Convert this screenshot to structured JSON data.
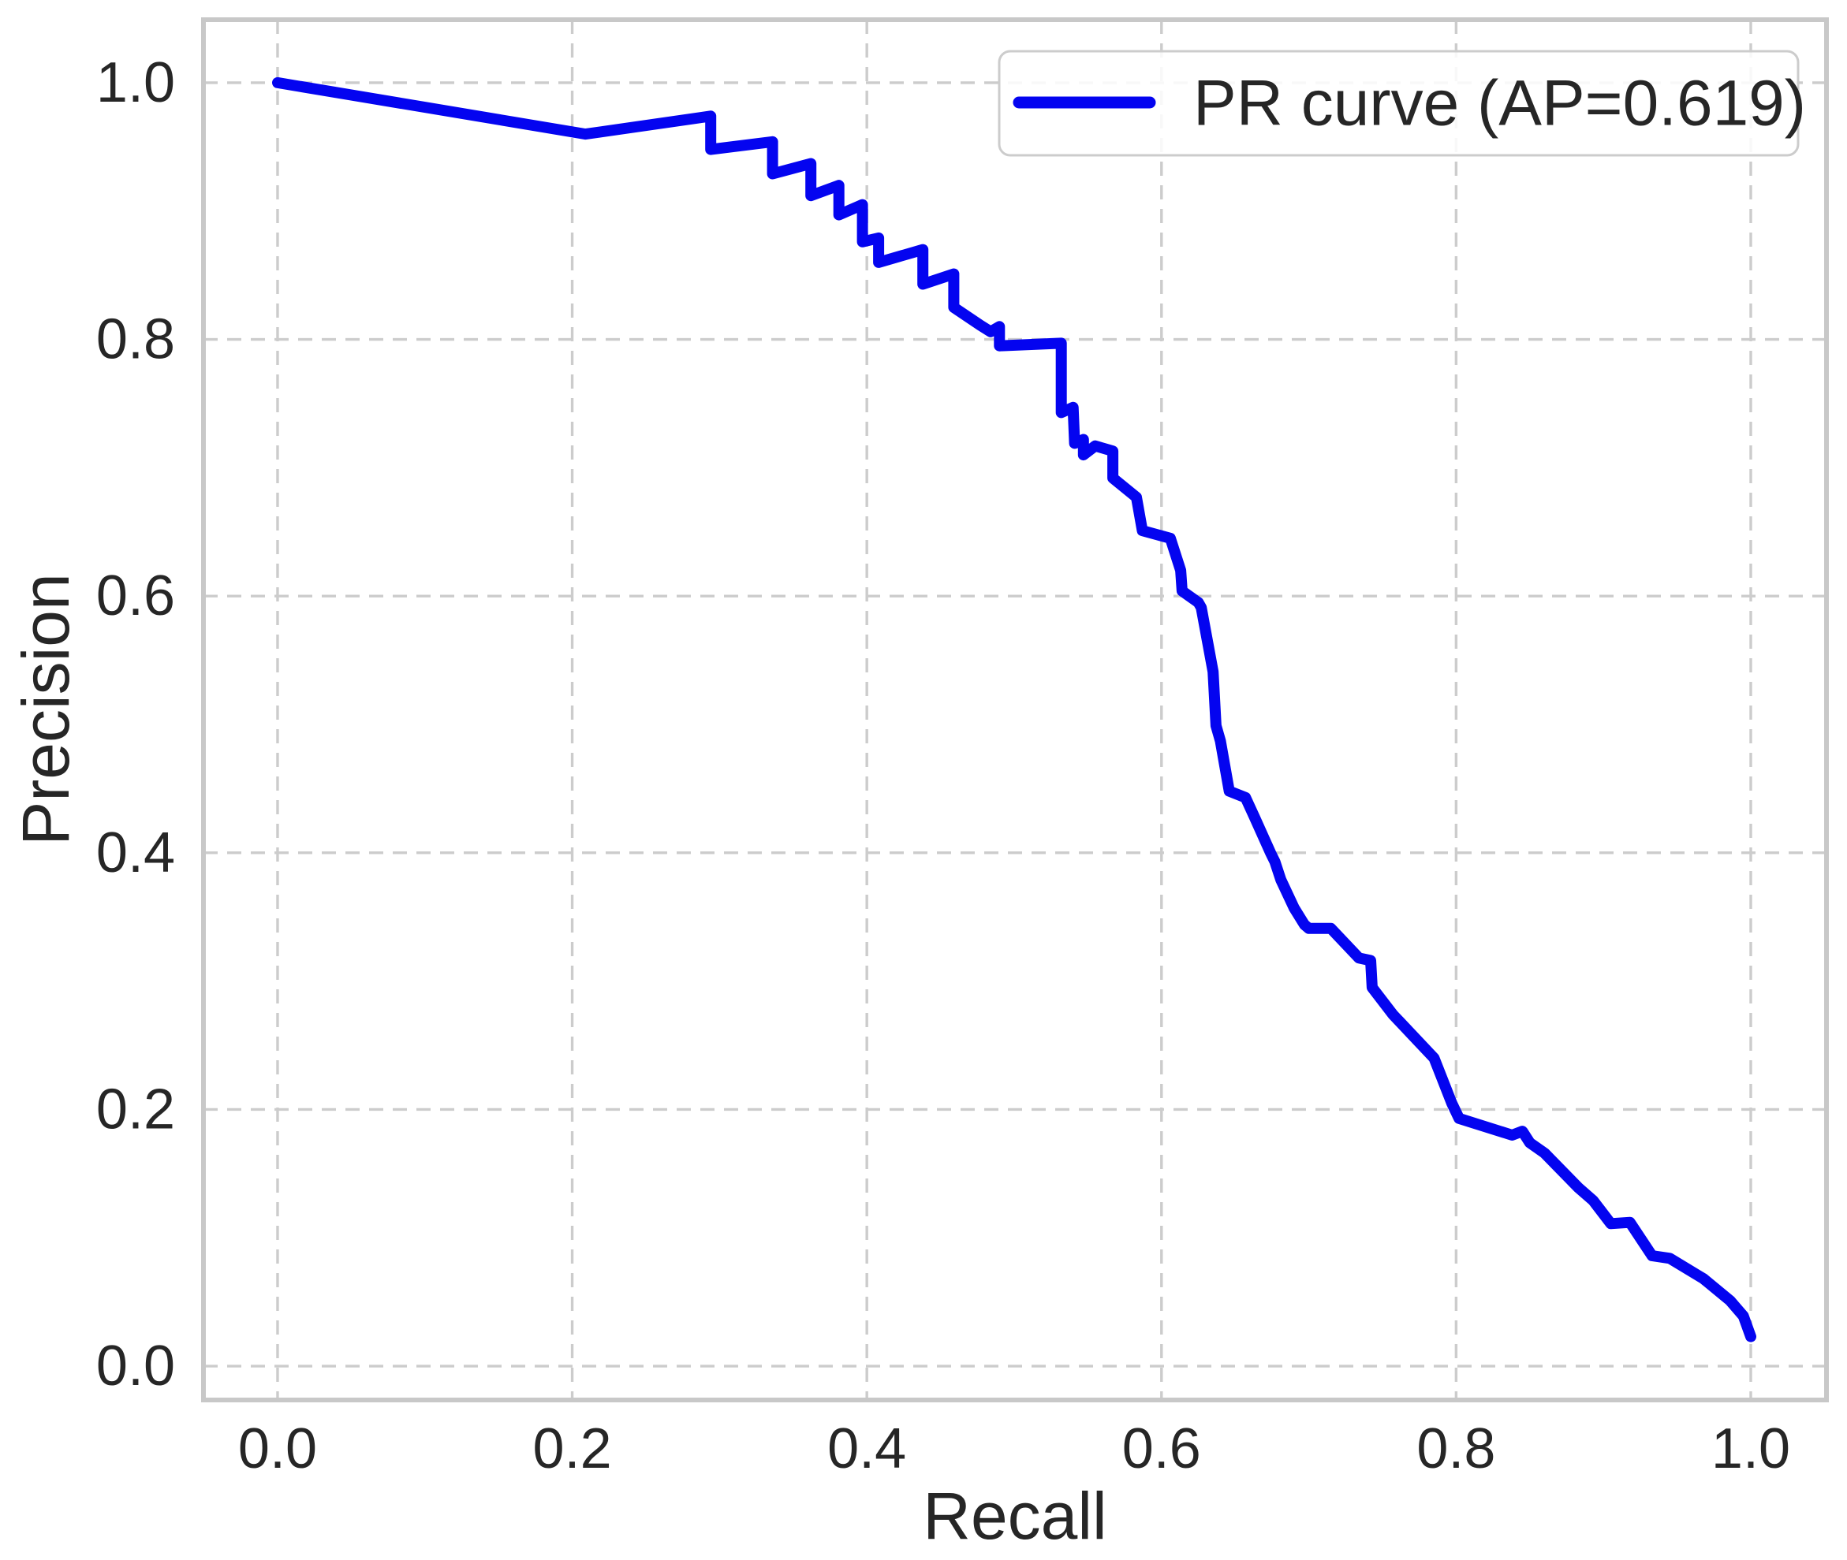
{
  "figure": {
    "background": "#ffffff"
  },
  "style": {
    "line_color": "#0404f0",
    "line_width": 14,
    "grid_color": "#cccccc",
    "grid_dash": "18 12",
    "grid_width": 3.4,
    "spine_color": "#c8c8c8",
    "spine_width": 6,
    "text_color": "#262626",
    "legend_bg": "#ffffff",
    "legend_border": "#cccccc"
  },
  "chart_data": {
    "type": "line",
    "title": "",
    "xlabel": "Recall",
    "ylabel": "Precision",
    "grid": true,
    "legend": {
      "position": "upper right",
      "label": "PR curve (AP=0.619)"
    },
    "ap_value": "0.619",
    "xlim": [
      -0.0503,
      1.0514
    ],
    "ylim": [
      -0.0264,
      1.0491
    ],
    "x_ticks": [
      0.0,
      0.2,
      0.4,
      0.6,
      0.8,
      1.0
    ],
    "x_tick_labels": [
      "0.0",
      "0.2",
      "0.4",
      "0.6",
      "0.8",
      "1.0"
    ],
    "y_ticks": [
      0.0,
      0.2,
      0.4,
      0.6,
      0.8,
      1.0
    ],
    "y_tick_labels": [
      "0.0",
      "0.2",
      "0.4",
      "0.6",
      "0.8",
      "1.0"
    ],
    "series": [
      {
        "name": "PR curve (AP=0.619)",
        "x": [
          0.0,
          0.209,
          0.294,
          0.294,
          0.336,
          0.336,
          0.362,
          0.362,
          0.381,
          0.381,
          0.397,
          0.397,
          0.408,
          0.408,
          0.438,
          0.438,
          0.459,
          0.459,
          0.477,
          0.484,
          0.49,
          0.49,
          0.532,
          0.532,
          0.54,
          0.541,
          0.547,
          0.547,
          0.555,
          0.567,
          0.567,
          0.583,
          0.587,
          0.606,
          0.613,
          0.614,
          0.625,
          0.627,
          0.635,
          0.637,
          0.64,
          0.646,
          0.657,
          0.663,
          0.674,
          0.677,
          0.681,
          0.69,
          0.697,
          0.7,
          0.715,
          0.734,
          0.742,
          0.743,
          0.757,
          0.785,
          0.797,
          0.802,
          0.838,
          0.845,
          0.85,
          0.86,
          0.883,
          0.893,
          0.905,
          0.918,
          0.933,
          0.945,
          0.968,
          0.986,
          0.995,
          1.0
        ],
        "y": [
          1.0,
          0.96,
          0.974,
          0.948,
          0.954,
          0.929,
          0.937,
          0.912,
          0.92,
          0.897,
          0.905,
          0.876,
          0.879,
          0.86,
          0.87,
          0.843,
          0.851,
          0.825,
          0.811,
          0.806,
          0.81,
          0.795,
          0.797,
          0.743,
          0.747,
          0.719,
          0.722,
          0.71,
          0.717,
          0.713,
          0.692,
          0.677,
          0.651,
          0.645,
          0.62,
          0.604,
          0.595,
          0.591,
          0.541,
          0.499,
          0.487,
          0.448,
          0.443,
          0.428,
          0.4,
          0.393,
          0.379,
          0.357,
          0.344,
          0.341,
          0.341,
          0.318,
          0.316,
          0.295,
          0.274,
          0.24,
          0.205,
          0.193,
          0.18,
          0.183,
          0.174,
          0.166,
          0.139,
          0.129,
          0.111,
          0.112,
          0.086,
          0.084,
          0.068,
          0.051,
          0.039,
          0.023
        ]
      }
    ]
  }
}
